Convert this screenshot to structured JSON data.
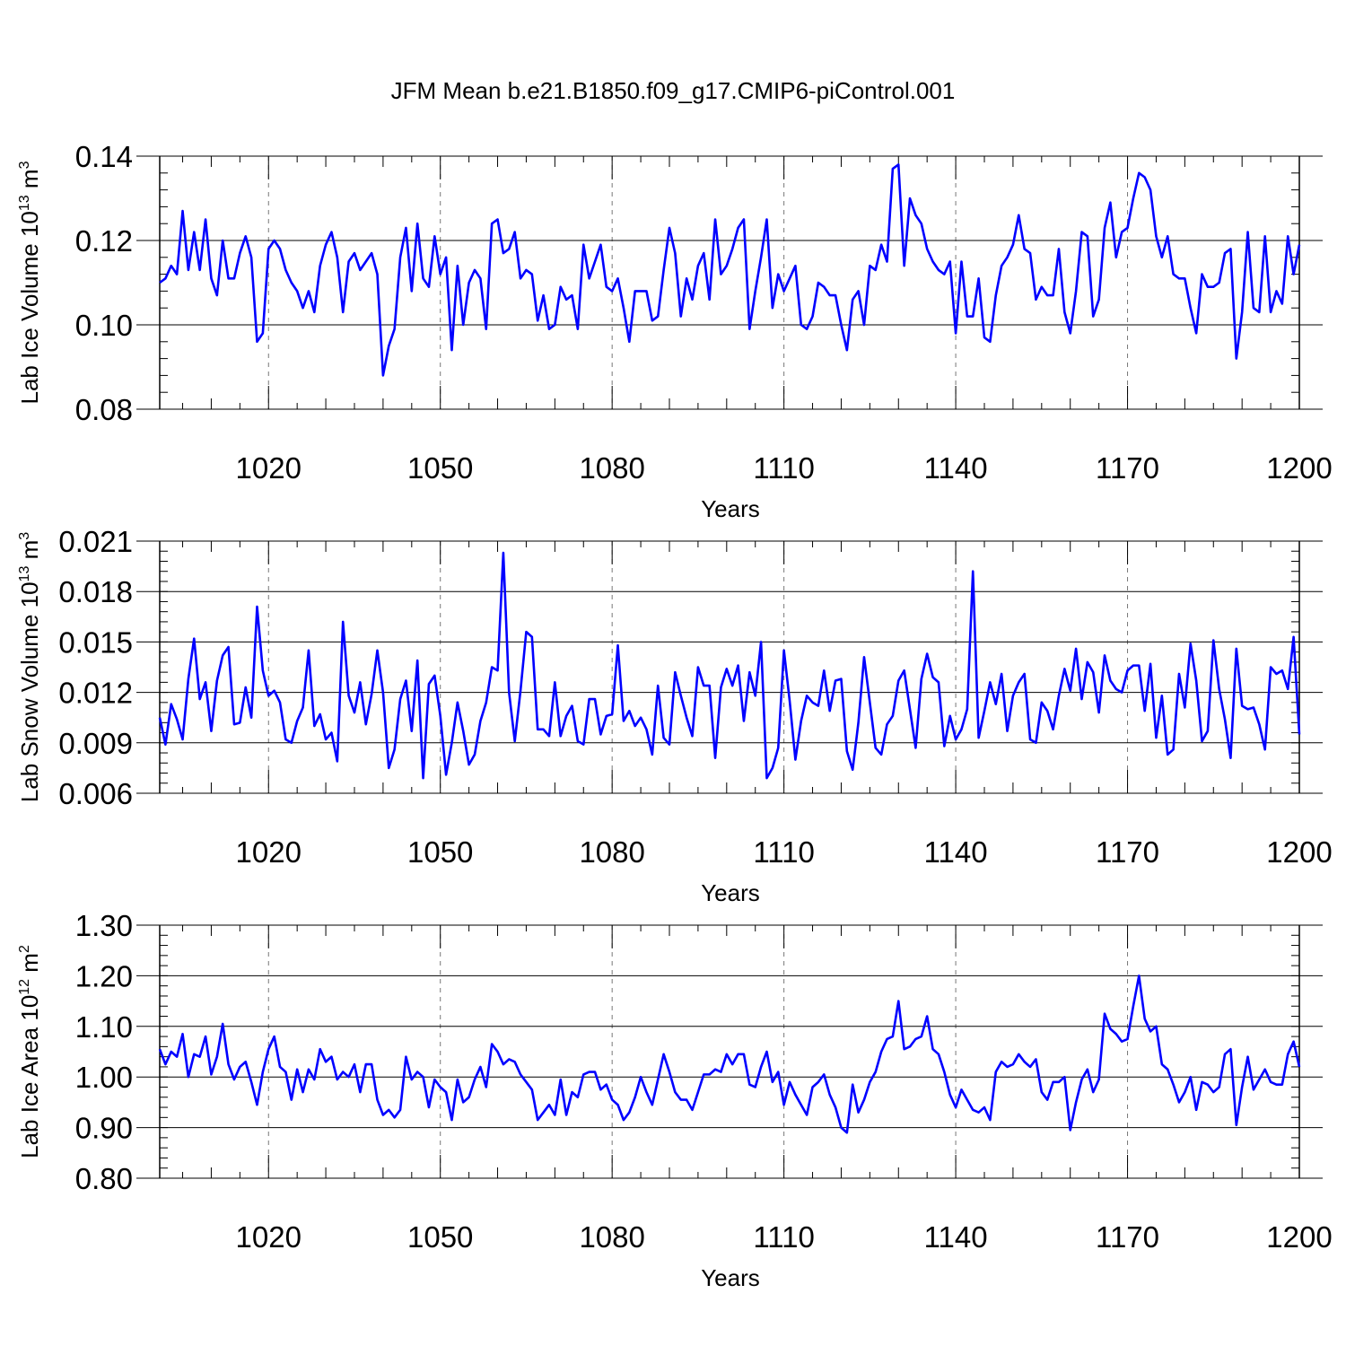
{
  "title": "JFM Mean b.e21.B1850.f09_g17.CMIP6-piControl.001",
  "series_color": "#0000ff",
  "chart_data": [
    {
      "type": "line",
      "ylabel": {
        "base": "Lab Ice Volume 10",
        "exp": "13",
        "unit": " m",
        "unit_exp": "3"
      },
      "xlabel": "Years",
      "xlim": [
        1001,
        1200
      ],
      "ylim": [
        0.08,
        0.14
      ],
      "xticks": [
        1020,
        1050,
        1080,
        1110,
        1140,
        1170,
        1200
      ],
      "xtick_labels": [
        "1020",
        "1050",
        "1080",
        "1110",
        "1140",
        "1170",
        "1200"
      ],
      "yticks": [
        0.08,
        0.1,
        0.12,
        0.14
      ],
      "ytick_labels": [
        "0.08",
        "0.10",
        "0.12",
        "0.14"
      ],
      "grid": "dashed vertical at major x ticks",
      "series": [
        {
          "name": "Lab Ice Volume",
          "x_start": 1001,
          "values": [
            0.11,
            0.111,
            0.114,
            0.112,
            0.127,
            0.113,
            0.122,
            0.113,
            0.125,
            0.111,
            0.107,
            0.12,
            0.111,
            0.111,
            0.117,
            0.121,
            0.116,
            0.096,
            0.098,
            0.118,
            0.12,
            0.118,
            0.113,
            0.11,
            0.108,
            0.104,
            0.108,
            0.103,
            0.114,
            0.119,
            0.122,
            0.116,
            0.103,
            0.115,
            0.117,
            0.113,
            0.115,
            0.117,
            0.112,
            0.088,
            0.095,
            0.099,
            0.116,
            0.123,
            0.108,
            0.124,
            0.111,
            0.109,
            0.121,
            0.112,
            0.116,
            0.094,
            0.114,
            0.1,
            0.11,
            0.113,
            0.111,
            0.099,
            0.124,
            0.125,
            0.117,
            0.118,
            0.122,
            0.111,
            0.113,
            0.112,
            0.101,
            0.107,
            0.099,
            0.1,
            0.109,
            0.106,
            0.107,
            0.099,
            0.119,
            0.111,
            0.115,
            0.119,
            0.109,
            0.108,
            0.111,
            0.104,
            0.096,
            0.108,
            0.108,
            0.108,
            0.101,
            0.102,
            0.113,
            0.123,
            0.117,
            0.102,
            0.111,
            0.106,
            0.114,
            0.117,
            0.106,
            0.125,
            0.112,
            0.114,
            0.118,
            0.123,
            0.125,
            0.099,
            0.108,
            0.116,
            0.125,
            0.104,
            0.112,
            0.108,
            0.111,
            0.114,
            0.1,
            0.099,
            0.102,
            0.11,
            0.109,
            0.107,
            0.107,
            0.1,
            0.094,
            0.106,
            0.108,
            0.1,
            0.114,
            0.113,
            0.119,
            0.115,
            0.137,
            0.138,
            0.114,
            0.13,
            0.126,
            0.124,
            0.118,
            0.115,
            0.113,
            0.112,
            0.115,
            0.098,
            0.115,
            0.102,
            0.102,
            0.111,
            0.097,
            0.096,
            0.107,
            0.114,
            0.116,
            0.119,
            0.126,
            0.118,
            0.117,
            0.106,
            0.109,
            0.107,
            0.107,
            0.118,
            0.103,
            0.098,
            0.108,
            0.122,
            0.121,
            0.102,
            0.106,
            0.123,
            0.129,
            0.116,
            0.122,
            0.123,
            0.13,
            0.136,
            0.135,
            0.132,
            0.121,
            0.116,
            0.121,
            0.112,
            0.111,
            0.111,
            0.104,
            0.098,
            0.112,
            0.109,
            0.109,
            0.11,
            0.117,
            0.118,
            0.092,
            0.103,
            0.122,
            0.104,
            0.103,
            0.121,
            0.103,
            0.108,
            0.105,
            0.121,
            0.112,
            0.119
          ]
        }
      ]
    },
    {
      "type": "line",
      "ylabel": {
        "base": "Lab Snow Volume 10",
        "exp": "13",
        "unit": " m",
        "unit_exp": "3"
      },
      "xlabel": "Years",
      "xlim": [
        1001,
        1200
      ],
      "ylim": [
        0.006,
        0.021
      ],
      "xticks": [
        1020,
        1050,
        1080,
        1110,
        1140,
        1170,
        1200
      ],
      "xtick_labels": [
        "1020",
        "1050",
        "1080",
        "1110",
        "1140",
        "1170",
        "1200"
      ],
      "yticks": [
        0.006,
        0.009,
        0.012,
        0.015,
        0.018,
        0.021
      ],
      "ytick_labels": [
        "0.006",
        "0.009",
        "0.012",
        "0.015",
        "0.018",
        "0.021"
      ],
      "grid": "dashed vertical at major x ticks",
      "series": [
        {
          "name": "Lab Snow Volume",
          "x_start": 1001,
          "values": [
            0.0105,
            0.0089,
            0.0113,
            0.0104,
            0.0092,
            0.0128,
            0.0152,
            0.0116,
            0.0126,
            0.0097,
            0.0127,
            0.0142,
            0.0147,
            0.0101,
            0.0102,
            0.0123,
            0.0105,
            0.0171,
            0.0133,
            0.0118,
            0.0121,
            0.0114,
            0.0092,
            0.009,
            0.0103,
            0.0111,
            0.0145,
            0.01,
            0.0107,
            0.0092,
            0.0096,
            0.0079,
            0.0162,
            0.0118,
            0.0108,
            0.0126,
            0.0101,
            0.0119,
            0.0145,
            0.012,
            0.0075,
            0.0086,
            0.0116,
            0.0127,
            0.0097,
            0.0139,
            0.0069,
            0.0125,
            0.013,
            0.0106,
            0.0071,
            0.009,
            0.0114,
            0.0097,
            0.0077,
            0.0083,
            0.0103,
            0.0114,
            0.0135,
            0.0133,
            0.0203,
            0.012,
            0.0091,
            0.0121,
            0.0156,
            0.0153,
            0.0098,
            0.0098,
            0.0094,
            0.0126,
            0.0094,
            0.0106,
            0.0112,
            0.0091,
            0.0089,
            0.0116,
            0.0116,
            0.0095,
            0.0106,
            0.0107,
            0.0148,
            0.0103,
            0.0109,
            0.01,
            0.0105,
            0.0098,
            0.0083,
            0.0124,
            0.0093,
            0.0089,
            0.0132,
            0.0118,
            0.0105,
            0.0094,
            0.0135,
            0.0124,
            0.0124,
            0.0081,
            0.0123,
            0.0134,
            0.0124,
            0.0136,
            0.0103,
            0.0132,
            0.0118,
            0.015,
            0.0069,
            0.0075,
            0.0087,
            0.0145,
            0.0115,
            0.008,
            0.0103,
            0.0118,
            0.0114,
            0.0112,
            0.0133,
            0.0109,
            0.0127,
            0.0128,
            0.0085,
            0.0074,
            0.0102,
            0.0141,
            0.0114,
            0.0087,
            0.0083,
            0.0101,
            0.0106,
            0.0127,
            0.0133,
            0.011,
            0.0087,
            0.0128,
            0.0143,
            0.0129,
            0.0126,
            0.0088,
            0.0106,
            0.0092,
            0.0098,
            0.011,
            0.0192,
            0.0093,
            0.0109,
            0.0126,
            0.0113,
            0.0131,
            0.0097,
            0.0118,
            0.0126,
            0.0131,
            0.0092,
            0.009,
            0.0114,
            0.0109,
            0.0098,
            0.0118,
            0.0134,
            0.0121,
            0.0146,
            0.0116,
            0.0138,
            0.0132,
            0.0108,
            0.0142,
            0.0127,
            0.0122,
            0.012,
            0.0133,
            0.0136,
            0.0136,
            0.0109,
            0.0137,
            0.0093,
            0.0118,
            0.0083,
            0.0086,
            0.0131,
            0.0111,
            0.0149,
            0.0127,
            0.0091,
            0.0097,
            0.0151,
            0.0122,
            0.0104,
            0.0081,
            0.0146,
            0.0112,
            0.011,
            0.0111,
            0.0101,
            0.0086,
            0.0135,
            0.0131,
            0.0133,
            0.0122,
            0.0153,
            0.0095
          ]
        }
      ]
    },
    {
      "type": "line",
      "ylabel": {
        "base": "Lab Ice Area 10",
        "exp": "12",
        "unit": " m",
        "unit_exp": "2"
      },
      "xlabel": "Years",
      "xlim": [
        1001,
        1200
      ],
      "ylim": [
        0.8,
        1.3
      ],
      "xticks": [
        1020,
        1050,
        1080,
        1110,
        1140,
        1170,
        1200
      ],
      "xtick_labels": [
        "1020",
        "1050",
        "1080",
        "1110",
        "1140",
        "1170",
        "1200"
      ],
      "yticks": [
        0.8,
        0.9,
        1.0,
        1.1,
        1.2,
        1.3
      ],
      "ytick_labels": [
        "0.80",
        "0.90",
        "1.00",
        "1.10",
        "1.20",
        "1.30"
      ],
      "grid": "dashed vertical at major x ticks",
      "series": [
        {
          "name": "Lab Ice Area",
          "x_start": 1001,
          "values": [
            1.055,
            1.025,
            1.05,
            1.04,
            1.085,
            1.0,
            1.045,
            1.04,
            1.08,
            1.005,
            1.04,
            1.105,
            1.025,
            0.995,
            1.02,
            1.03,
            0.99,
            0.945,
            1.01,
            1.055,
            1.08,
            1.02,
            1.01,
            0.955,
            1.015,
            0.97,
            1.015,
            0.995,
            1.055,
            1.03,
            1.04,
            0.995,
            1.01,
            1.0,
            1.025,
            0.97,
            1.025,
            1.025,
            0.955,
            0.925,
            0.935,
            0.92,
            0.935,
            1.04,
            0.995,
            1.01,
            1.0,
            0.94,
            0.995,
            0.98,
            0.97,
            0.915,
            0.995,
            0.95,
            0.96,
            0.995,
            1.02,
            0.98,
            1.065,
            1.05,
            1.025,
            1.035,
            1.03,
            1.005,
            0.99,
            0.975,
            0.915,
            0.93,
            0.945,
            0.925,
            0.995,
            0.925,
            0.97,
            0.96,
            1.005,
            1.01,
            1.01,
            0.975,
            0.985,
            0.955,
            0.945,
            0.915,
            0.93,
            0.96,
            1.0,
            0.97,
            0.945,
            0.995,
            1.045,
            1.01,
            0.97,
            0.955,
            0.955,
            0.935,
            0.97,
            1.005,
            1.005,
            1.015,
            1.01,
            1.045,
            1.025,
            1.045,
            1.045,
            0.985,
            0.98,
            1.02,
            1.05,
            0.99,
            1.01,
            0.945,
            0.99,
            0.965,
            0.945,
            0.925,
            0.98,
            0.99,
            1.005,
            0.965,
            0.94,
            0.9,
            0.89,
            0.985,
            0.93,
            0.955,
            0.99,
            1.01,
            1.05,
            1.075,
            1.08,
            1.15,
            1.055,
            1.06,
            1.075,
            1.08,
            1.12,
            1.055,
            1.045,
            1.01,
            0.965,
            0.94,
            0.975,
            0.955,
            0.935,
            0.93,
            0.94,
            0.915,
            1.01,
            1.03,
            1.02,
            1.025,
            1.045,
            1.03,
            1.02,
            1.035,
            0.97,
            0.955,
            0.99,
            0.99,
            1.0,
            0.895,
            0.95,
            0.995,
            1.015,
            0.97,
            0.995,
            1.125,
            1.095,
            1.085,
            1.07,
            1.075,
            1.14,
            1.2,
            1.115,
            1.09,
            1.1,
            1.025,
            1.015,
            0.985,
            0.95,
            0.97,
            1.0,
            0.935,
            0.99,
            0.985,
            0.97,
            0.98,
            1.045,
            1.055,
            0.905,
            0.98,
            1.04,
            0.975,
            0.995,
            1.015,
            0.99,
            0.985,
            0.985,
            1.045,
            1.07,
            1.02
          ]
        }
      ]
    }
  ]
}
